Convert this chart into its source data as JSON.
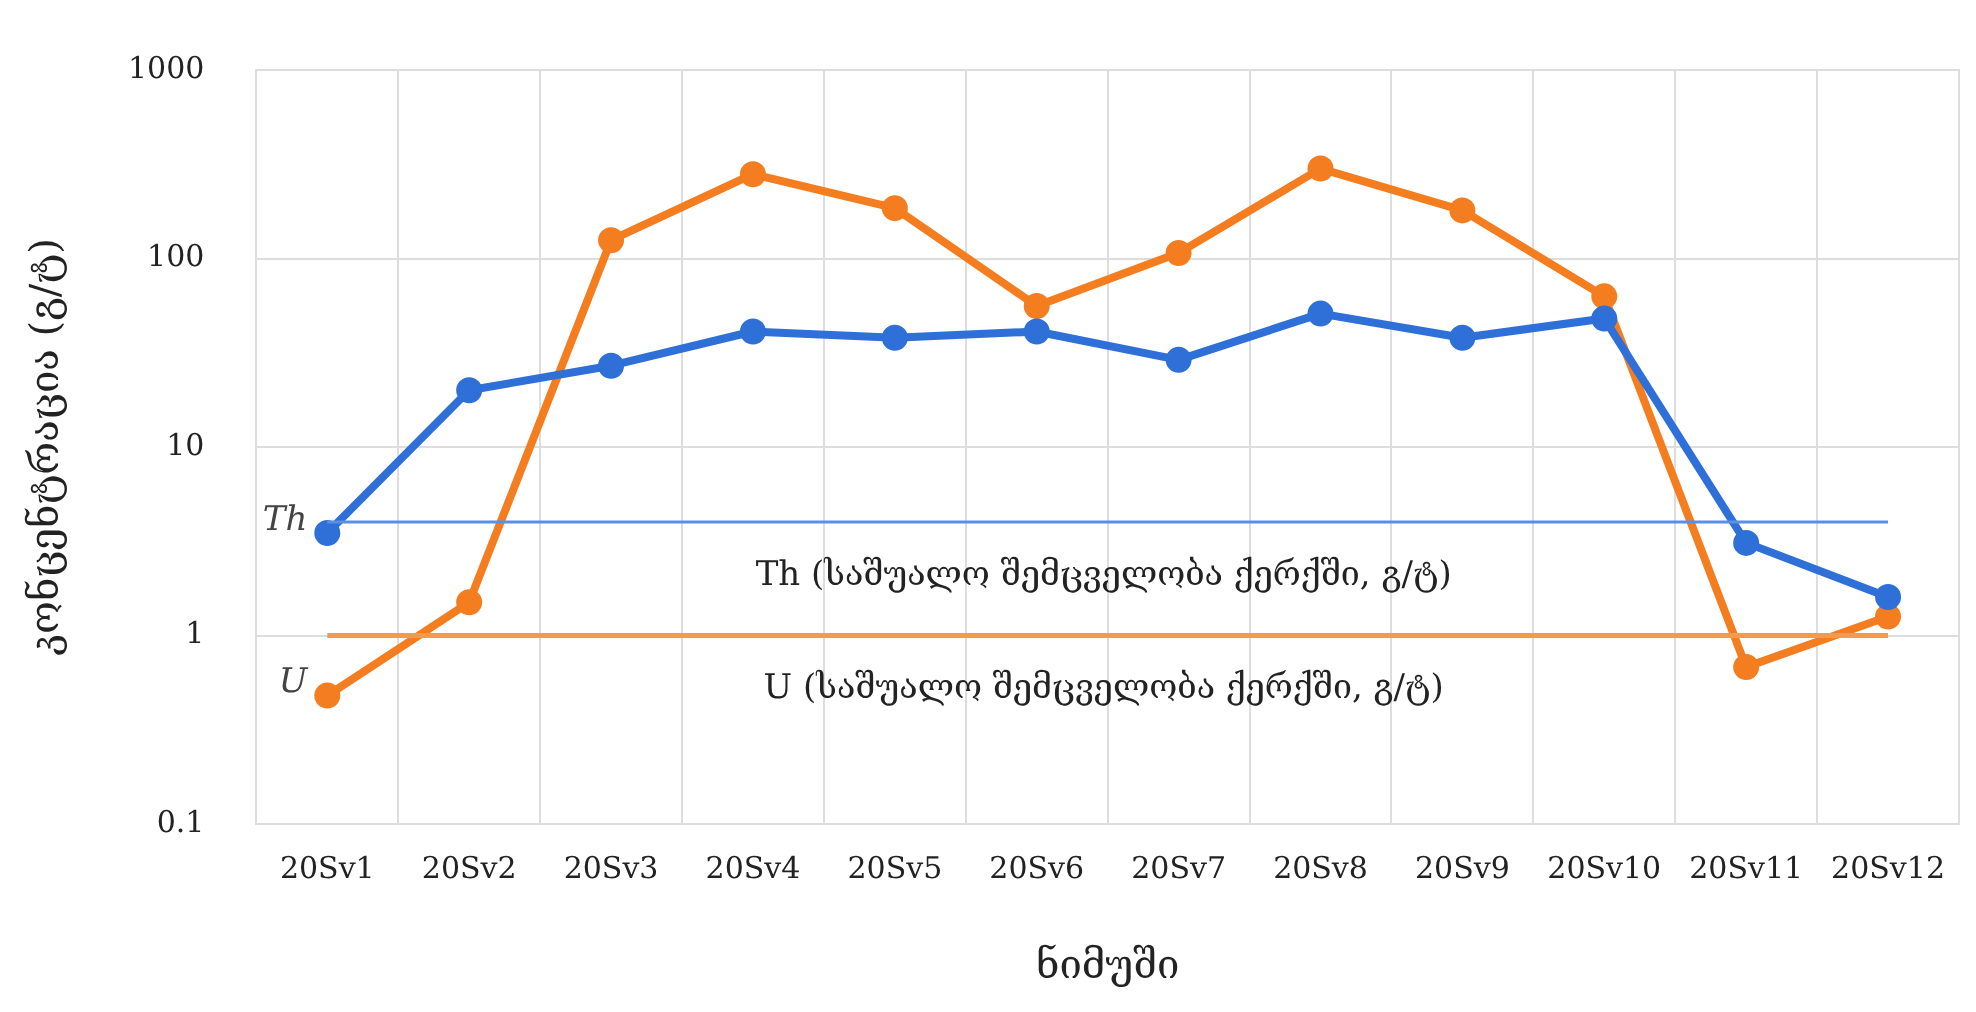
{
  "chart_data": {
    "type": "line",
    "ylabel": "კონცენტრაცია (გ/ტ)",
    "xlabel": "ნიმუში",
    "categories": [
      "20Sv1",
      "20Sv2",
      "20Sv3",
      "20Sv4",
      "20Sv5",
      "20Sv6",
      "20Sv7",
      "20Sv8",
      "20Sv9",
      "20Sv10",
      "20Sv11",
      "20Sv12"
    ],
    "series": [
      {
        "name": "Th",
        "color": "#2e6fd8",
        "values": [
          3.5,
          20,
          27,
          41,
          38,
          41,
          29,
          51,
          38,
          48,
          3.1,
          1.6
        ]
      },
      {
        "name": "U",
        "color": "#f47d20",
        "values": [
          0.48,
          1.5,
          125,
          280,
          185,
          56,
          107,
          300,
          180,
          63,
          0.68,
          1.26
        ]
      }
    ],
    "log": "y",
    "ylim": [
      0.1,
      1000
    ],
    "yticks": [
      0.1,
      1,
      10,
      100,
      1000
    ],
    "ref_lines": [
      {
        "axis": "y",
        "value": 4,
        "label": "Th (საშუალო შემცველობა ქერქში, გ/ტ)",
        "color": "#5b8fe3"
      },
      {
        "axis": "y",
        "value": 1,
        "label": "U (საშუალო შემცველობა ქერქში, გ/ტ)",
        "color": "#f39a4c"
      }
    ],
    "grid": true,
    "legend": false,
    "marker": "circle",
    "line_style": "solid"
  }
}
